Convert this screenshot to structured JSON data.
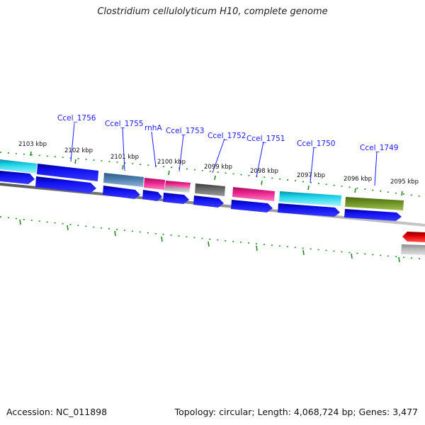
{
  "title": "Clostridium cellulolyticum H10, complete genome",
  "footer": {
    "accession": "Accession: NC_011898",
    "topology": "Topology: circular; Length: 4,068,724 bp; Genes: 3,477"
  },
  "colors": {
    "cds_blue": "#0a0ae6",
    "cyan": "#19d2e8",
    "steel": "#4a7aa8",
    "pink": "#e8208c",
    "gray": "#666666",
    "olive": "#6b8e23",
    "red": "#e00000",
    "light_gray": "#b5b5b5",
    "ticks": "#228b22",
    "backbone": "#808080",
    "label": "#1a1aff"
  },
  "gene_labels": [
    {
      "text": "Ccel_1756"
    },
    {
      "text": "Ccel_1755"
    },
    {
      "text": "rnhA"
    },
    {
      "text": "Ccel_1753"
    },
    {
      "text": "Ccel_1752"
    },
    {
      "text": "Ccel_1751"
    },
    {
      "text": "Ccel_1750"
    },
    {
      "text": "Ccel_1749"
    }
  ],
  "kbp_labels": [
    {
      "text": "2103 kbp"
    },
    {
      "text": "2102 kbp"
    },
    {
      "text": "2101 kbp"
    },
    {
      "text": "2100 kbp"
    },
    {
      "text": "2099 kbp"
    },
    {
      "text": "2098 kbp"
    },
    {
      "text": "2097 kbp"
    },
    {
      "text": "2096 kbp"
    },
    {
      "text": "2095 kbp"
    }
  ]
}
